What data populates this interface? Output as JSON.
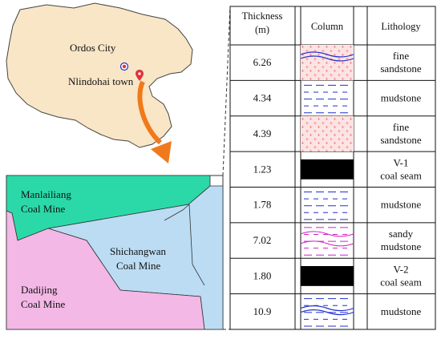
{
  "map": {
    "cities": [
      {
        "id": "ordos",
        "label": "Ordos City"
      },
      {
        "id": "nlindohai",
        "label": "Nlindohai town"
      }
    ]
  },
  "mine_map": {
    "mines": [
      {
        "id": "manlailiang",
        "label_lines": [
          "Manlailiang",
          "Coal Mine"
        ],
        "color": "#2bd9a8"
      },
      {
        "id": "shichangwan",
        "label_lines": [
          "Shichangwan",
          "Coal Mine"
        ],
        "color": "#bcdcf3"
      },
      {
        "id": "dadijing",
        "label_lines": [
          "Dadijing",
          "Coal Mine"
        ],
        "color": "#f3b8e6"
      }
    ]
  },
  "column": {
    "headers": {
      "thickness": [
        "Thickness",
        "(m)"
      ],
      "column": "Column",
      "lithology": "Lithology"
    },
    "rows": [
      {
        "thickness": "6.26",
        "lithology": [
          "fine",
          "sandstone"
        ],
        "pattern": "sandstone-wavy"
      },
      {
        "thickness": "4.34",
        "lithology": [
          "mudstone"
        ],
        "pattern": "mudstone"
      },
      {
        "thickness": "4.39",
        "lithology": [
          "fine",
          "sandstone"
        ],
        "pattern": "sandstone"
      },
      {
        "thickness": "1.23",
        "lithology": [
          "V-1",
          "coal seam"
        ],
        "pattern": "coal"
      },
      {
        "thickness": "1.78",
        "lithology": [
          "mudstone"
        ],
        "pattern": "mudstone"
      },
      {
        "thickness": "7.02",
        "lithology": [
          "sandy",
          "mudstone"
        ],
        "pattern": "sandy-mudstone"
      },
      {
        "thickness": "1.80",
        "lithology": [
          "V-2",
          "coal seam"
        ],
        "pattern": "coal"
      },
      {
        "thickness": "10.9",
        "lithology": [
          "mudstone"
        ],
        "pattern": "mudstone-wavy"
      }
    ]
  },
  "colors": {
    "region_fill": "#f8e6c6",
    "arrow": "#f07a1b",
    "marker": "#e0323c",
    "sandstone_bg": "#fde0e0",
    "sandstone_dot": "#e53935",
    "mud_line": "#2030d0",
    "sandy_line": "#d020c8",
    "coal": "#000000"
  }
}
